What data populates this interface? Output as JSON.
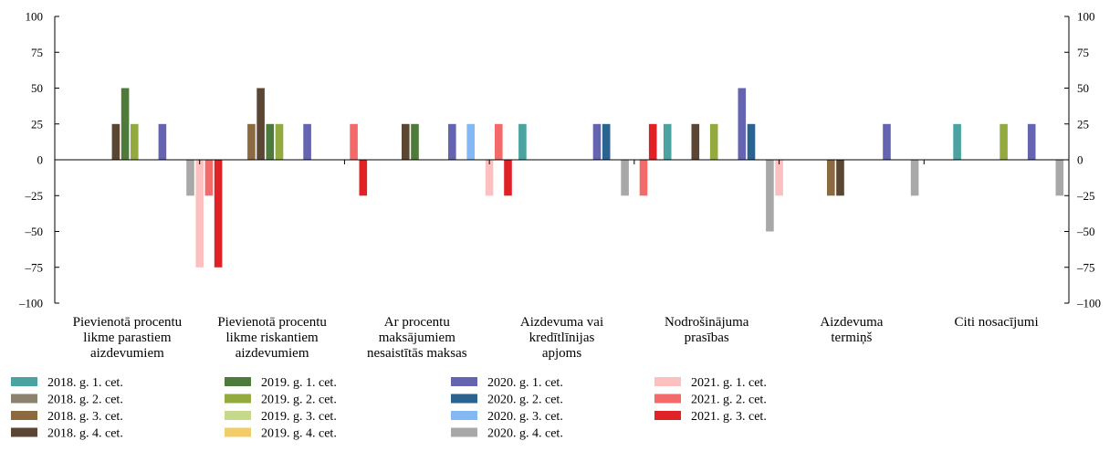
{
  "chart_data": {
    "type": "bar",
    "y_range": [
      -100,
      100
    ],
    "y_ticks": [
      {
        "value": 100,
        "label": "100"
      },
      {
        "value": 75,
        "label": "75"
      },
      {
        "value": 50,
        "label": "50"
      },
      {
        "value": 25,
        "label": "25"
      },
      {
        "value": 0,
        "label": "0"
      },
      {
        "value": -25,
        "label": "–25"
      },
      {
        "value": -50,
        "label": "–50"
      },
      {
        "value": -75,
        "label": "–75"
      },
      {
        "value": -100,
        "label": "–100"
      }
    ],
    "secondary_y_axis": true,
    "grid": false,
    "legend_position": "bottom",
    "categories": [
      [
        "Pievienotā procentu",
        "likme parastiem",
        "aizdevumiem"
      ],
      [
        "Pievienotā procentu",
        "likme riskantiem",
        "aizdevumiem"
      ],
      [
        "Ar procentu",
        "maksājumiem",
        "nesaistītās maksas"
      ],
      [
        "Aizdevuma vai",
        "kredītlīnijas",
        "apjoms"
      ],
      [
        "Nodrošinājuma",
        "prasības"
      ],
      [
        "Aizdevuma",
        "termiņš"
      ],
      [
        "Citi nosacījumi"
      ]
    ],
    "series": [
      {
        "name": "2018. g. 1. cet.",
        "color": "#4aa3a0",
        "values": [
          0,
          0,
          0,
          25,
          25,
          0,
          25
        ]
      },
      {
        "name": "2018. g. 2. cet.",
        "color": "#8c8270",
        "values": [
          0,
          0,
          0,
          0,
          0,
          0,
          0
        ]
      },
      {
        "name": "2018. g. 3. cet.",
        "color": "#8a6a3e",
        "values": [
          0,
          25,
          0,
          0,
          0,
          -25,
          0
        ]
      },
      {
        "name": "2018. g. 4. cet.",
        "color": "#5a4632",
        "values": [
          25,
          50,
          25,
          0,
          25,
          -25,
          0
        ]
      },
      {
        "name": "2019. g. 1. cet.",
        "color": "#4e7a3c",
        "values": [
          50,
          25,
          25,
          0,
          0,
          0,
          0
        ]
      },
      {
        "name": "2019. g. 2. cet.",
        "color": "#93aa3e",
        "values": [
          25,
          25,
          0,
          0,
          25,
          0,
          25
        ]
      },
      {
        "name": "2019. g. 3. cet.",
        "color": "#c6d88a",
        "values": [
          0,
          0,
          0,
          0,
          0,
          0,
          0
        ]
      },
      {
        "name": "2019. g. 4. cet.",
        "color": "#f2cc66",
        "values": [
          0,
          0,
          0,
          0,
          0,
          0,
          0
        ]
      },
      {
        "name": "2020. g. 1. cet.",
        "color": "#6464b0",
        "values": [
          25,
          25,
          25,
          25,
          50,
          25,
          25
        ]
      },
      {
        "name": "2020. g. 2. cet.",
        "color": "#2a6290",
        "values": [
          0,
          0,
          0,
          25,
          25,
          0,
          0
        ]
      },
      {
        "name": "2020. g. 3. cet.",
        "color": "#84b8f4",
        "values": [
          0,
          0,
          25,
          0,
          0,
          0,
          0
        ]
      },
      {
        "name": "2020. g. 4. cet.",
        "color": "#a8a8a8",
        "values": [
          -25,
          0,
          0,
          -25,
          -50,
          -25,
          -25
        ]
      },
      {
        "name": "2021. g. 1. cet.",
        "color": "#fcc0c0",
        "values": [
          -75,
          0,
          -25,
          0,
          -25,
          0,
          0
        ]
      },
      {
        "name": "2021. g. 2. cet.",
        "color": "#f46a6a",
        "values": [
          -25,
          25,
          25,
          -25,
          0,
          0,
          0
        ]
      },
      {
        "name": "2021. g. 3. cet.",
        "color": "#e02226",
        "values": [
          -75,
          -25,
          -25,
          25,
          0,
          0,
          0
        ]
      }
    ]
  }
}
